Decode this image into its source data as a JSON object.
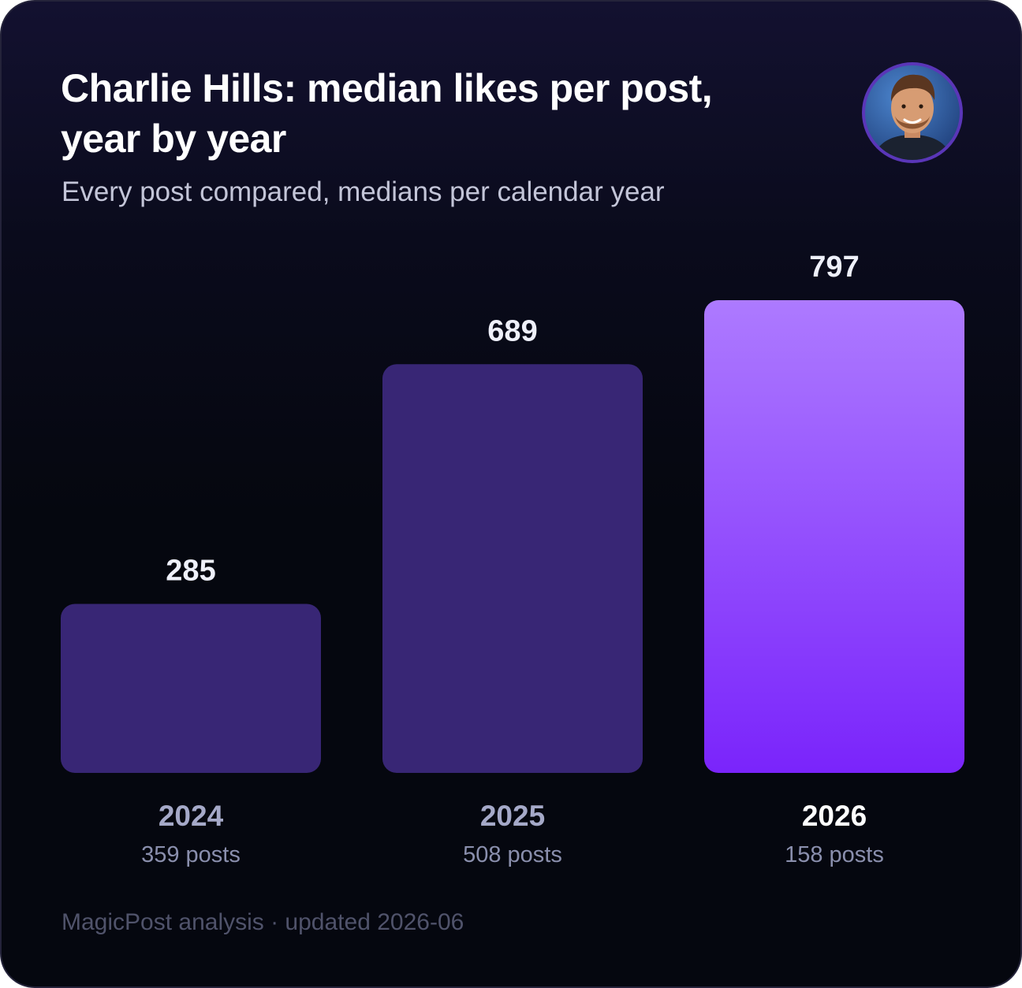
{
  "title": "Charlie Hills: median likes per post, year by year",
  "subtitle": "Every post compared, medians per calendar year",
  "footer": "MagicPost analysis · updated 2026-06",
  "avatar_icon": "person-portrait-avatar",
  "colors": {
    "bar": "#382675",
    "highlight_top": "#ad7aff",
    "highlight_bottom": "#7a24fb",
    "avatar_ring": "#5a36b8"
  },
  "chart_data": {
    "type": "bar",
    "title": "Charlie Hills: median likes per post, year by year",
    "subtitle": "Every post compared, medians per calendar year",
    "categories": [
      "2024",
      "2025",
      "2026"
    ],
    "values": [
      285,
      689,
      797
    ],
    "value_labels": [
      "285",
      "689",
      "797"
    ],
    "post_counts": [
      "359 posts",
      "508 posts",
      "158 posts"
    ],
    "highlight": "2026",
    "xlabel": "",
    "ylabel": "",
    "grid": false,
    "legend": "none"
  }
}
